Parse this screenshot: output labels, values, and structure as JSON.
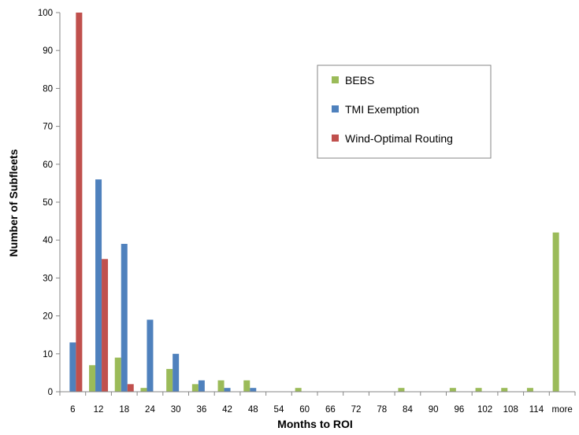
{
  "chart_data": {
    "type": "bar",
    "title": "",
    "xlabel": "Months to ROI",
    "ylabel": "Number of Subfleets",
    "ylim": [
      0,
      100
    ],
    "yticks": [
      0,
      10,
      20,
      30,
      40,
      50,
      60,
      70,
      80,
      90,
      100
    ],
    "grid": false,
    "legend_position": "top-right",
    "categories": [
      "6",
      "12",
      "18",
      "24",
      "30",
      "36",
      "42",
      "48",
      "54",
      "60",
      "66",
      "72",
      "78",
      "84",
      "90",
      "96",
      "102",
      "108",
      "114",
      "more"
    ],
    "series": [
      {
        "name": "BEBS",
        "color": "#9BBB59",
        "values": [
          0,
          7,
          9,
          1,
          6,
          2,
          3,
          3,
          0,
          1,
          0,
          0,
          0,
          1,
          0,
          1,
          1,
          1,
          1,
          42
        ]
      },
      {
        "name": "TMI Exemption",
        "color": "#4F81BD",
        "values": [
          13,
          56,
          39,
          19,
          10,
          3,
          1,
          1,
          0,
          0,
          0,
          0,
          0,
          0,
          0,
          0,
          0,
          0,
          0,
          0
        ]
      },
      {
        "name": "Wind-Optimal Routing",
        "color": "#C0504D",
        "values": [
          100,
          35,
          2,
          0,
          0,
          0,
          0,
          0,
          0,
          0,
          0,
          0,
          0,
          0,
          0,
          0,
          0,
          0,
          0,
          0
        ]
      }
    ]
  }
}
